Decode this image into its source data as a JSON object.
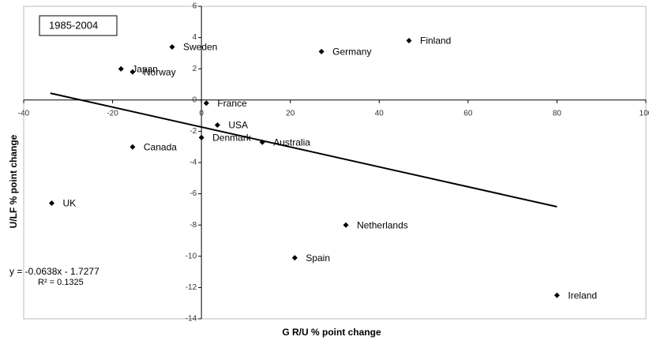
{
  "chart_data": {
    "type": "scatter",
    "title": "1985-2004",
    "x_label": "G R/U % point change",
    "y_label": "U/LF % point change",
    "equation": "y = -0.0638x - 1.7277",
    "r_squared": "R² = 0.1325",
    "labels": [
      "Sweden",
      "Japan",
      "Norway",
      "Germany",
      "Finland",
      "France",
      "USA",
      "Denmark",
      "Australia",
      "Canada",
      "UK",
      "Netherlands",
      "Spain",
      "Ireland"
    ],
    "x": [
      -6.6,
      -18.1,
      -15.5,
      27,
      46.7,
      1.1,
      3.6,
      0,
      13.7,
      -15.5,
      -33.7,
      32.5,
      21,
      80
    ],
    "values": [
      3.4,
      2.0,
      1.8,
      3.1,
      3.8,
      -0.2,
      -1.6,
      -2.4,
      -2.7,
      -3.0,
      -6.6,
      -8.0,
      -10.1,
      -12.5
    ],
    "color": "#000000",
    "trendline": {
      "x": [
        -34,
        80
      ],
      "values": [
        0.44,
        -6.83
      ]
    },
    "xlim": [
      -40,
      100
    ],
    "ylim": [
      -14,
      6
    ],
    "xticks": [
      -40,
      -20,
      0,
      20,
      40,
      60,
      80,
      100
    ],
    "yticks": [
      -14,
      -12,
      -10,
      -8,
      -6,
      -4,
      -2,
      0,
      2,
      4,
      6
    ]
  }
}
